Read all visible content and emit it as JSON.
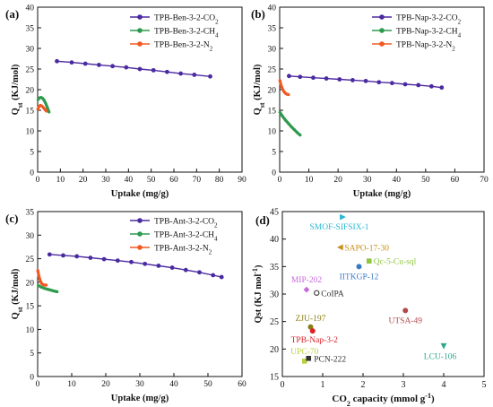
{
  "colors": {
    "co2": "#4b2aa0",
    "ch4": "#2e9a4e",
    "n2": "#f05a22"
  },
  "chart_data": [
    {
      "type": "line",
      "panel_label": "(a)",
      "xlabel": "Uptake (mg/g)",
      "ylabel_main": "Q",
      "ylabel_sub": "st",
      "ylabel_tail": " (KJ/mol)",
      "xlim": [
        0,
        90
      ],
      "ylim": [
        0,
        40
      ],
      "xticks": [
        0,
        10,
        20,
        30,
        40,
        50,
        60,
        70,
        80,
        90
      ],
      "yticks": [
        0,
        5,
        10,
        15,
        20,
        25,
        30,
        35,
        40
      ],
      "legend_position": "top-right",
      "series": [
        {
          "name": "TPB-Ben-3-2-CO2",
          "name_base": "TPB-Ben-3-2-CO",
          "name_sub": "2",
          "color_key": "co2",
          "markers": true,
          "x": [
            8.5,
            15,
            21,
            27,
            33,
            39,
            45,
            51,
            57,
            63,
            69,
            76
          ],
          "y": [
            26.9,
            26.6,
            26.3,
            26.0,
            25.7,
            25.4,
            25.0,
            24.7,
            24.3,
            23.9,
            23.6,
            23.2
          ]
        },
        {
          "name": "TPB-Ben-3-2-CH4",
          "name_base": "TPB-Ben-3-2-CH",
          "name_sub": "4",
          "color_key": "ch4",
          "markers": false,
          "x": [
            0.2,
            0.8,
            1.5,
            2.2,
            2.9,
            3.6,
            4.3,
            5.0
          ],
          "y": [
            17.6,
            18.0,
            18.1,
            17.9,
            17.4,
            16.6,
            15.6,
            14.6
          ]
        },
        {
          "name": "TPB-Ben-3-2-N2",
          "name_base": "TPB-Ben-3-2-N",
          "name_sub": "2",
          "color_key": "n2",
          "markers": false,
          "x": [
            0.1,
            0.6,
            1.2,
            1.9,
            2.6,
            3.3,
            3.9
          ],
          "y": [
            15.3,
            15.9,
            16.2,
            16.0,
            15.6,
            15.1,
            14.8
          ]
        }
      ]
    },
    {
      "type": "line",
      "panel_label": "(b)",
      "xlabel": "Uptake (mg/g)",
      "ylabel_main": "Q",
      "ylabel_sub": "st",
      "ylabel_tail": " (KJ/mol)",
      "xlim": [
        0,
        70
      ],
      "ylim": [
        0,
        40
      ],
      "xticks": [
        0,
        10,
        20,
        30,
        40,
        50,
        60,
        70
      ],
      "yticks": [
        0,
        5,
        10,
        15,
        20,
        25,
        30,
        35,
        40
      ],
      "legend_position": "top-right",
      "series": [
        {
          "name": "TPB-Nap-3-2-CO2",
          "name_base": "TPB-Nap-3-2-CO",
          "name_sub": "2",
          "color_key": "co2",
          "markers": true,
          "x": [
            3.2,
            7,
            11.5,
            16,
            20.5,
            25,
            29.5,
            34,
            38.5,
            43,
            47.5,
            52,
            55.5
          ],
          "y": [
            23.3,
            23.1,
            22.9,
            22.7,
            22.5,
            22.3,
            22.1,
            21.8,
            21.6,
            21.3,
            21.1,
            20.8,
            20.5
          ]
        },
        {
          "name": "TPB-Nap-3-2-CH4",
          "name_base": "TPB-Nap-3-2-CH",
          "name_sub": "4",
          "color_key": "ch4",
          "markers": false,
          "x": [
            0.1,
            1.0,
            2.0,
            3.0,
            4.0,
            5.0,
            6.0,
            7.0
          ],
          "y": [
            14.5,
            13.5,
            12.6,
            11.8,
            11.0,
            10.3,
            9.6,
            9.0
          ]
        },
        {
          "name": "TPB-Nap-3-2-N2",
          "name_base": "TPB-Nap-3-2-N",
          "name_sub": "2",
          "color_key": "n2",
          "markers": false,
          "x": [
            0.1,
            0.5,
            1.0,
            1.5,
            2.0,
            2.5,
            3.0
          ],
          "y": [
            22.2,
            21.0,
            20.1,
            19.5,
            19.1,
            18.9,
            18.8
          ]
        }
      ]
    },
    {
      "type": "line",
      "panel_label": "(c)",
      "xlabel": "Uptake (mg/g)",
      "ylabel_main": "Q",
      "ylabel_sub": "st",
      "ylabel_tail": " (KJ/mol)",
      "xlim": [
        0,
        60
      ],
      "ylim": [
        0,
        35
      ],
      "xticks": [
        0,
        10,
        20,
        30,
        40,
        50,
        60
      ],
      "yticks": [
        0,
        5,
        10,
        15,
        20,
        25,
        30,
        35
      ],
      "legend_position": "top-right",
      "series": [
        {
          "name": "TPB-Ant-3-2-CO2",
          "name_base": "TPB-Ant-3-2-CO",
          "name_sub": "2",
          "color_key": "co2",
          "markers": true,
          "x": [
            3.5,
            7.5,
            11.5,
            15.5,
            19.5,
            23.5,
            27.5,
            31.5,
            35.5,
            39.5,
            43.5,
            47.5,
            51.5,
            54
          ],
          "y": [
            25.9,
            25.7,
            25.5,
            25.2,
            24.9,
            24.6,
            24.3,
            23.9,
            23.5,
            23.1,
            22.6,
            22.1,
            21.5,
            21.1
          ]
        },
        {
          "name": "TPB-Ant-3-2-CH4",
          "name_base": "TPB-Ant-3-2-CH",
          "name_sub": "4",
          "color_key": "ch4",
          "markers": false,
          "x": [
            0.2,
            1.0,
            2.0,
            3.0,
            4.0,
            5.0,
            5.7
          ],
          "y": [
            19.3,
            19.0,
            18.7,
            18.5,
            18.3,
            18.1,
            18.0
          ]
        },
        {
          "name": "TPB-Ant-3-2-N2",
          "name_base": "TPB-Ant-3-2-N",
          "name_sub": "2",
          "color_key": "n2",
          "markers": false,
          "x": [
            0.05,
            0.3,
            0.6,
            0.9,
            1.2,
            1.6,
            2.0,
            2.5
          ],
          "y": [
            22.5,
            21.5,
            20.7,
            20.1,
            19.7,
            19.5,
            19.4,
            19.4
          ]
        }
      ]
    },
    {
      "type": "scatter",
      "panel_label": "(d)",
      "xlabel_base": "CO",
      "xlabel_sub": "2",
      "xlabel_tail": " capacity (mmol g",
      "xlabel_sup": "-1",
      "xlabel_close": ")",
      "ylabel_base": "Qst (KJ mol",
      "ylabel_sup": "-1",
      "ylabel_close": ")",
      "xlim": [
        0,
        5
      ],
      "ylim": [
        15,
        45
      ],
      "xticks": [
        0,
        1,
        2,
        3,
        4,
        5
      ],
      "yticks": [
        15,
        20,
        25,
        30,
        35,
        40,
        45
      ],
      "points": [
        {
          "label": "SMOF-SIFSIX-1",
          "x": 1.5,
          "y": 44.0,
          "marker": "triangle-right",
          "color": "#2ab7d6"
        },
        {
          "label": "SAPO-17-30",
          "x": 1.43,
          "y": 38.5,
          "marker": "triangle-left",
          "color": "#c8901c"
        },
        {
          "label": "Qc-5-Cu-sql",
          "x": 2.15,
          "y": 36.0,
          "marker": "square",
          "color": "#8ec63f"
        },
        {
          "label": "IITKGP-12",
          "x": 1.9,
          "y": 35.0,
          "marker": "circle",
          "color": "#3a79c9"
        },
        {
          "label": "MIP-202",
          "x": 0.6,
          "y": 30.8,
          "marker": "diamond",
          "color": "#c46ad9"
        },
        {
          "label": "CoIPA",
          "x": 0.85,
          "y": 30.2,
          "marker": "circle-open",
          "color": "#444444"
        },
        {
          "label": "UTSA-49",
          "x": 3.05,
          "y": 27.0,
          "marker": "circle",
          "color": "#b34a4a"
        },
        {
          "label": "ZJU-197",
          "x": 0.7,
          "y": 24.0,
          "marker": "circle",
          "color": "#8a7d12"
        },
        {
          "label": "TPB-Nap-3-2",
          "x": 0.75,
          "y": 23.3,
          "marker": "circle",
          "color": "#d9232a"
        },
        {
          "label": "LCU-106",
          "x": 4.0,
          "y": 20.5,
          "marker": "triangle-down",
          "color": "#2aa889"
        },
        {
          "label": "UPC-70",
          "x": 0.55,
          "y": 17.8,
          "marker": "square",
          "color": "#b7d23a"
        },
        {
          "label": "PCN-222",
          "x": 0.65,
          "y": 18.3,
          "marker": "square",
          "color": "#333333"
        }
      ]
    }
  ]
}
